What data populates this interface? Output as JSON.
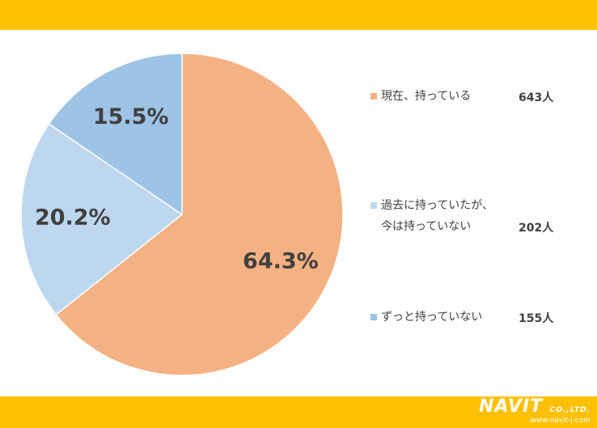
{
  "chart_data": {
    "type": "pie",
    "categories": [
      "現在、持っている",
      "過去に持っていたが、\n今は持っていない",
      "ずっと持っていない"
    ],
    "values": [
      64.3,
      20.2,
      15.5
    ],
    "value_labels": [
      "64.3%",
      "20.2%",
      "15.5%"
    ],
    "count_labels": [
      "643人",
      "202人",
      "155人"
    ],
    "colors": [
      "#f4b183",
      "#bdd7ee",
      "#9dc3e6"
    ]
  },
  "footer": {
    "brand": "NAVIT",
    "company": "CO.,LTD.",
    "url": "www.navit-j.com"
  }
}
